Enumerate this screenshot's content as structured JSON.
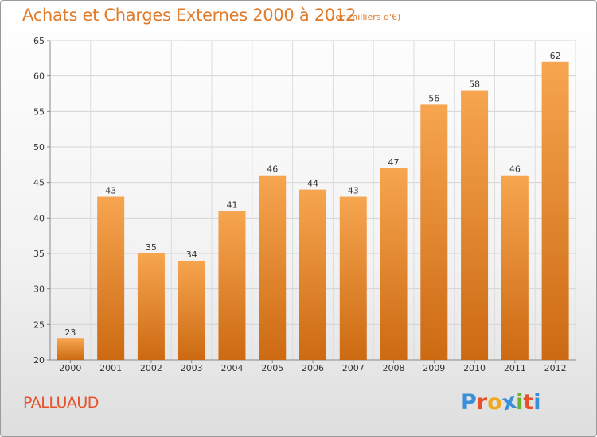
{
  "header": {
    "title": "Achats et Charges Externes 2000 à 2012",
    "subtitle": "(en milliers d'€)"
  },
  "footer": {
    "commune": "PALLUAUD",
    "brand_letters": [
      "P",
      "r",
      "o",
      "x",
      "i",
      "t",
      "i"
    ],
    "brand_colors": [
      "#3a8fd9",
      "#e8502a",
      "#f0a81c",
      "#3a8fd9",
      "#6ab42d",
      "#e8502a",
      "#3a8fd9"
    ]
  },
  "colors": {
    "bar_top": "#f7a550",
    "bar_bottom": "#cc6a12",
    "text_accent": "#e07b2a"
  },
  "chart_data": {
    "type": "bar",
    "title": "Achats et Charges Externes 2000 à 2012",
    "subtitle": "(en milliers d'€)",
    "categories": [
      "2000",
      "2001",
      "2002",
      "2003",
      "2004",
      "2005",
      "2006",
      "2007",
      "2008",
      "2009",
      "2010",
      "2011",
      "2012"
    ],
    "values": [
      23,
      43,
      35,
      34,
      41,
      46,
      44,
      43,
      47,
      56,
      58,
      46,
      62
    ],
    "value_labels": [
      "23",
      "43",
      "35",
      "34",
      "41",
      "46",
      "44",
      "43",
      "47",
      "56",
      "58",
      "46",
      "62"
    ],
    "ylim": [
      20,
      65
    ],
    "yticks": [
      20,
      25,
      30,
      35,
      40,
      45,
      50,
      55,
      60,
      65
    ],
    "ytick_labels": [
      "20",
      "25",
      "30",
      "35",
      "40",
      "45",
      "50",
      "55",
      "60",
      "65"
    ],
    "grid": true,
    "legend": "none"
  }
}
